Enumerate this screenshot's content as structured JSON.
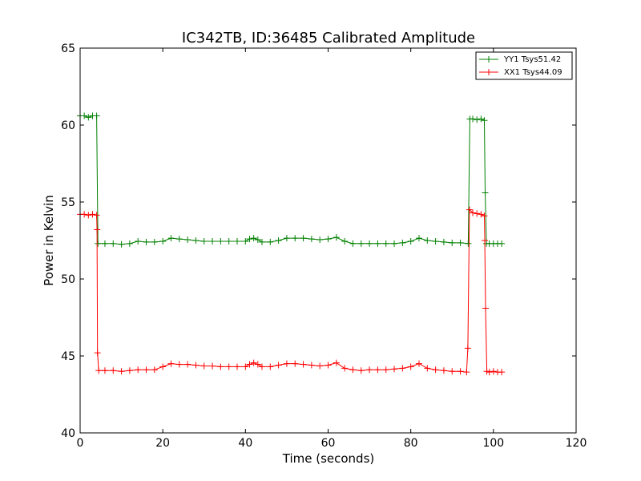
{
  "chart_data": {
    "type": "line",
    "title": "IC342TB, ID:36485 Calibrated Amplitude",
    "xlabel": "Time (seconds)",
    "ylabel": "Power in Kelvin",
    "xlim": [
      0,
      120
    ],
    "ylim": [
      40,
      65
    ],
    "xticks": [
      "0",
      "20",
      "40",
      "60",
      "80",
      "100",
      "120"
    ],
    "yticks": [
      "40",
      "45",
      "50",
      "55",
      "60",
      "65"
    ],
    "grid": false,
    "legend_position": "top-right",
    "marker": "+",
    "series": [
      {
        "name": "YY1 Tsys51.42",
        "color": "#008000",
        "points": [
          [
            0.0,
            60.6
          ],
          [
            1.0,
            60.6
          ],
          [
            2.0,
            60.5
          ],
          [
            3.0,
            60.6
          ],
          [
            4.0,
            60.6
          ],
          [
            4.3,
            52.3
          ],
          [
            6.0,
            52.3
          ],
          [
            8.0,
            52.3
          ],
          [
            10.0,
            52.25
          ],
          [
            12.0,
            52.3
          ],
          [
            14.0,
            52.45
          ],
          [
            16.0,
            52.4
          ],
          [
            18.0,
            52.4
          ],
          [
            20.0,
            52.45
          ],
          [
            22.0,
            52.65
          ],
          [
            24.0,
            52.6
          ],
          [
            26.0,
            52.55
          ],
          [
            28.0,
            52.5
          ],
          [
            30.0,
            52.45
          ],
          [
            32.0,
            52.45
          ],
          [
            34.0,
            52.45
          ],
          [
            36.0,
            52.45
          ],
          [
            38.0,
            52.45
          ],
          [
            40.0,
            52.45
          ],
          [
            41.0,
            52.6
          ],
          [
            42.0,
            52.65
          ],
          [
            43.0,
            52.55
          ],
          [
            44.0,
            52.4
          ],
          [
            46.0,
            52.4
          ],
          [
            48.0,
            52.5
          ],
          [
            50.0,
            52.65
          ],
          [
            52.0,
            52.65
          ],
          [
            54.0,
            52.65
          ],
          [
            56.0,
            52.6
          ],
          [
            58.0,
            52.55
          ],
          [
            60.0,
            52.6
          ],
          [
            62.0,
            52.7
          ],
          [
            64.0,
            52.45
          ],
          [
            66.0,
            52.3
          ],
          [
            68.0,
            52.3
          ],
          [
            70.0,
            52.3
          ],
          [
            72.0,
            52.3
          ],
          [
            74.0,
            52.3
          ],
          [
            76.0,
            52.3
          ],
          [
            78.0,
            52.35
          ],
          [
            80.0,
            52.45
          ],
          [
            82.0,
            52.65
          ],
          [
            84.0,
            52.5
          ],
          [
            86.0,
            52.45
          ],
          [
            88.0,
            52.4
          ],
          [
            90.0,
            52.35
          ],
          [
            92.0,
            52.35
          ],
          [
            93.9,
            52.3
          ],
          [
            94.3,
            60.4
          ],
          [
            95.0,
            60.4
          ],
          [
            96.0,
            60.35
          ],
          [
            97.0,
            60.4
          ],
          [
            97.8,
            60.3
          ],
          [
            98.0,
            55.6
          ],
          [
            98.3,
            52.3
          ],
          [
            99.0,
            52.3
          ],
          [
            100.0,
            52.3
          ],
          [
            101.0,
            52.3
          ],
          [
            102.0,
            52.3
          ]
        ]
      },
      {
        "name": "XX1 Tsys44.09",
        "color": "#ff0000",
        "points": [
          [
            0.0,
            54.2
          ],
          [
            1.0,
            54.2
          ],
          [
            2.0,
            54.15
          ],
          [
            3.0,
            54.2
          ],
          [
            4.0,
            54.15
          ],
          [
            4.1,
            53.2
          ],
          [
            4.2,
            45.2
          ],
          [
            4.5,
            44.05
          ],
          [
            6.0,
            44.05
          ],
          [
            8.0,
            44.05
          ],
          [
            10.0,
            44.0
          ],
          [
            12.0,
            44.05
          ],
          [
            14.0,
            44.1
          ],
          [
            16.0,
            44.1
          ],
          [
            18.0,
            44.1
          ],
          [
            20.0,
            44.3
          ],
          [
            22.0,
            44.5
          ],
          [
            24.0,
            44.45
          ],
          [
            26.0,
            44.45
          ],
          [
            28.0,
            44.4
          ],
          [
            30.0,
            44.35
          ],
          [
            32.0,
            44.35
          ],
          [
            34.0,
            44.3
          ],
          [
            36.0,
            44.3
          ],
          [
            38.0,
            44.3
          ],
          [
            40.0,
            44.3
          ],
          [
            41.0,
            44.45
          ],
          [
            42.0,
            44.55
          ],
          [
            43.0,
            44.45
          ],
          [
            44.0,
            44.3
          ],
          [
            46.0,
            44.3
          ],
          [
            48.0,
            44.4
          ],
          [
            50.0,
            44.5
          ],
          [
            52.0,
            44.5
          ],
          [
            54.0,
            44.45
          ],
          [
            56.0,
            44.4
          ],
          [
            58.0,
            44.35
          ],
          [
            60.0,
            44.4
          ],
          [
            62.0,
            44.55
          ],
          [
            64.0,
            44.2
          ],
          [
            66.0,
            44.1
          ],
          [
            68.0,
            44.05
          ],
          [
            70.0,
            44.1
          ],
          [
            72.0,
            44.1
          ],
          [
            74.0,
            44.1
          ],
          [
            76.0,
            44.15
          ],
          [
            78.0,
            44.2
          ],
          [
            80.0,
            44.3
          ],
          [
            82.0,
            44.5
          ],
          [
            84.0,
            44.2
          ],
          [
            86.0,
            44.1
          ],
          [
            88.0,
            44.05
          ],
          [
            90.0,
            44.0
          ],
          [
            92.0,
            44.0
          ],
          [
            93.5,
            43.95
          ],
          [
            93.8,
            45.5
          ],
          [
            94.2,
            54.5
          ],
          [
            95.0,
            54.3
          ],
          [
            96.0,
            54.25
          ],
          [
            97.0,
            54.2
          ],
          [
            97.8,
            54.1
          ],
          [
            97.9,
            52.5
          ],
          [
            98.1,
            48.1
          ],
          [
            98.4,
            44.0
          ],
          [
            99.0,
            43.95
          ],
          [
            100.0,
            44.0
          ],
          [
            101.0,
            43.95
          ],
          [
            102.0,
            43.95
          ]
        ]
      }
    ]
  }
}
